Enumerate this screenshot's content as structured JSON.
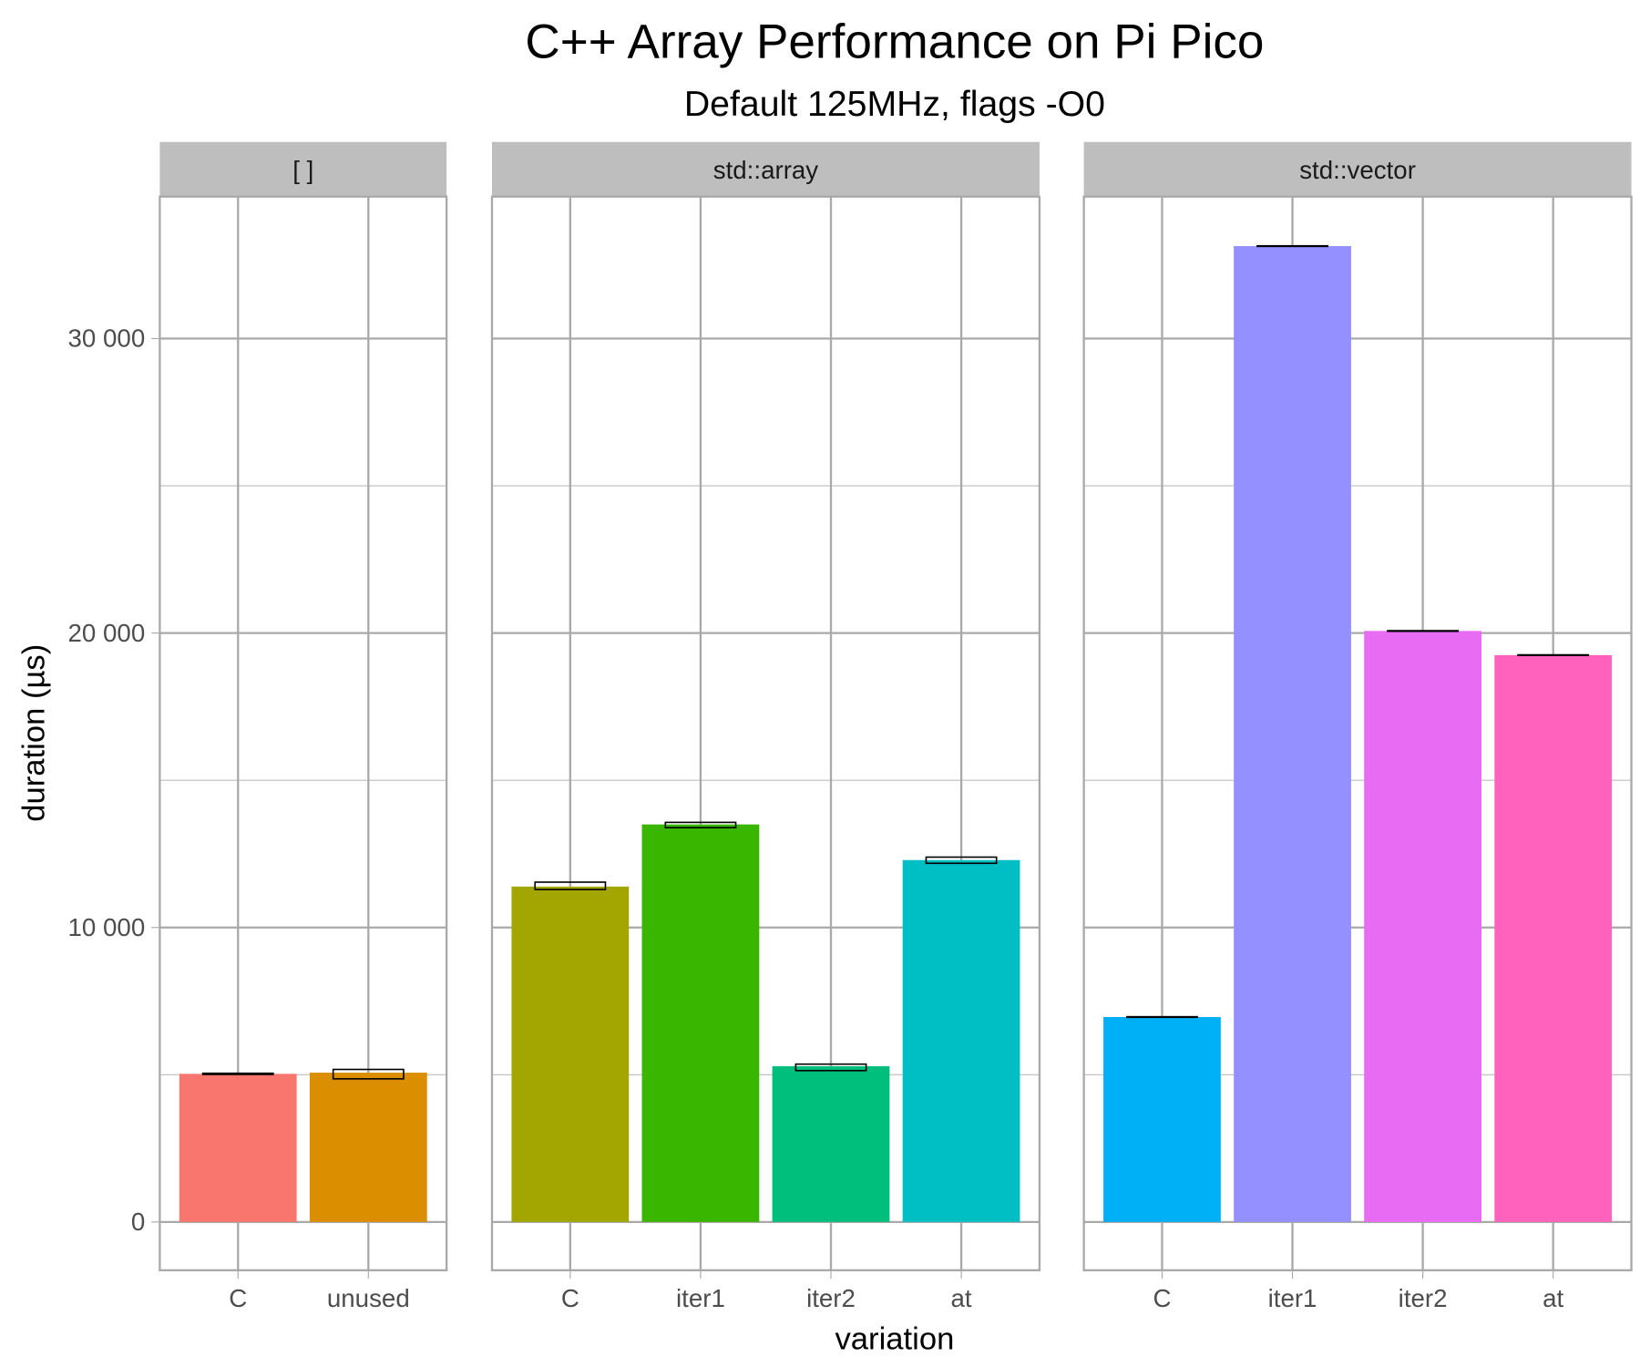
{
  "chart_data": {
    "type": "bar",
    "title": "C++ Array Performance on Pi Pico",
    "subtitle": "Default 125MHz, flags -O0",
    "xlabel": "variation",
    "ylabel": "duration (µs)",
    "ylim": [
      -1640,
      34820
    ],
    "yticks": [
      0,
      10000,
      20000,
      30000
    ],
    "ytick_labels": [
      "0",
      "10 000",
      "20 000",
      "30 000"
    ],
    "grid": true,
    "legend": "none",
    "facets": [
      {
        "label": "[ ]",
        "categories": [
          "C",
          "unused"
        ],
        "values": [
          5030,
          5070
        ],
        "err_low": [
          5010,
          4860
        ],
        "err_high": [
          5050,
          5180
        ],
        "colors": [
          "#F8766D",
          "#DB8E00"
        ]
      },
      {
        "label": "std::array",
        "categories": [
          "C",
          "iter1",
          "iter2",
          "at"
        ],
        "values": [
          11390,
          13500,
          5290,
          12290
        ],
        "err_low": [
          11290,
          13390,
          5140,
          12180
        ],
        "err_high": [
          11540,
          13570,
          5360,
          12390
        ],
        "colors": [
          "#A3A500",
          "#39B600",
          "#00BF7D",
          "#00BFC4"
        ]
      },
      {
        "label": "std::vector",
        "categories": [
          "C",
          "iter1",
          "iter2",
          "at"
        ],
        "values": [
          6960,
          33140,
          20070,
          19250
        ],
        "err_low": [
          6950,
          33130,
          20060,
          19240
        ],
        "err_high": [
          6970,
          33150,
          20080,
          19260
        ],
        "colors": [
          "#00B0F6",
          "#9590FF",
          "#E76BF3",
          "#FF62BC"
        ]
      }
    ]
  }
}
